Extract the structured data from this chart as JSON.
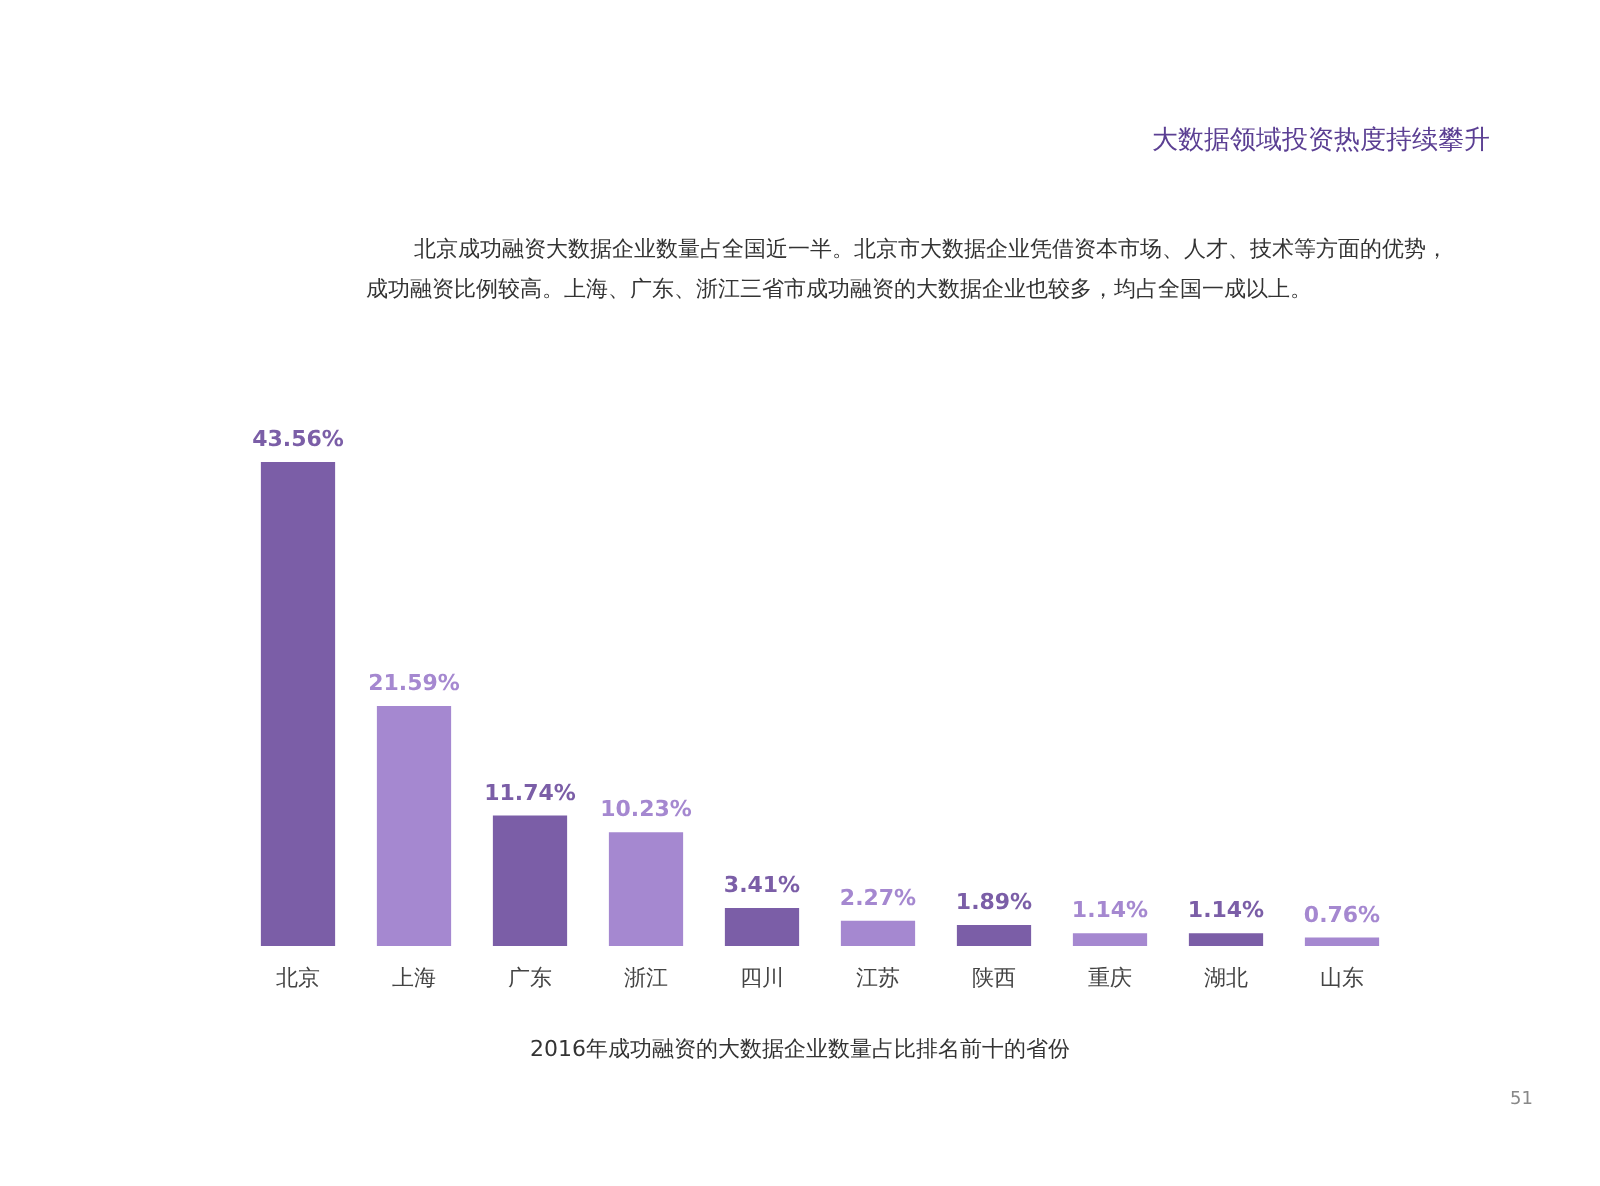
{
  "chart_data": {
    "type": "bar",
    "title": "大数据领域投资热度持续攀升",
    "subtitle": [
      "北京成功融资大数据企业数量占全国近一半。北京市大数据企业凭借资本市场、人才、技术等方面的优势，",
      "成功融资比例较高。上海、广东、浙江三省市成功融资的大数据企业也较多，均占全国一成以上。"
    ],
    "categories": [
      "北京",
      "上海",
      "广东",
      "浙江",
      "四川",
      "江苏",
      "陕西",
      "重庆",
      "湖北",
      "山东"
    ],
    "values": [
      43.56,
      21.59,
      11.74,
      10.23,
      3.41,
      2.27,
      1.89,
      1.14,
      1.14,
      0.76
    ],
    "value_labels": [
      "43.56%",
      "21.59%",
      "11.74%",
      "10.23%",
      "3.41%",
      "2.27%",
      "1.89%",
      "1.14%",
      "1.14%",
      "0.76%"
    ],
    "colors": [
      "#7b5ea7",
      "#a588d0",
      "#7b5ea7",
      "#a588d0",
      "#7b5ea7",
      "#a588d0",
      "#7b5ea7",
      "#a588d0",
      "#7b5ea7",
      "#a588d0"
    ],
    "tick_labels": "x",
    "annotations": [
      "2016年成功融资的大数据企业数量占比排名前十的省份",
      "51"
    ]
  }
}
